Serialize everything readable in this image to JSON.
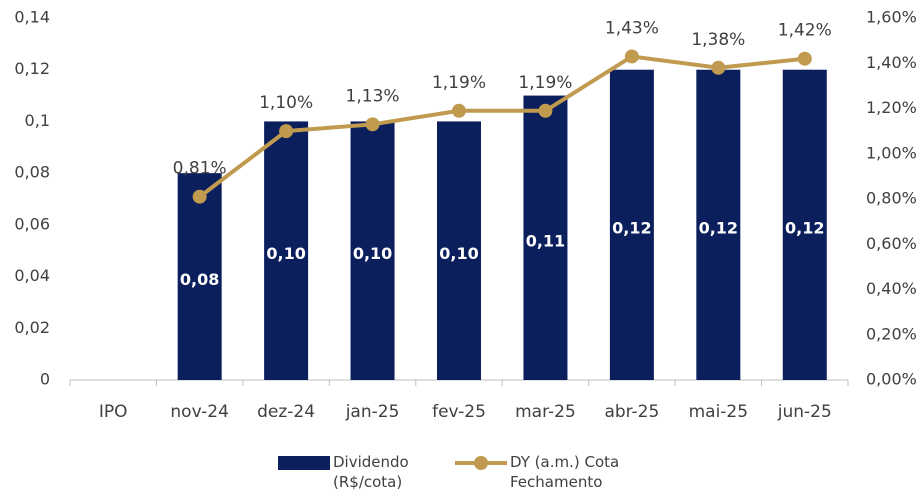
{
  "chart_data": {
    "type": "bar_line",
    "categories": [
      "IPO",
      "nov-24",
      "dez-24",
      "jan-25",
      "fev-25",
      "mar-25",
      "abr-25",
      "mai-25",
      "jun-25"
    ],
    "series": [
      {
        "name": "Dividendo (R$/cota)",
        "type": "bar",
        "color": "#0b1f5c",
        "values": [
          null,
          0.08,
          0.1,
          0.1,
          0.1,
          0.11,
          0.12,
          0.12,
          0.12
        ],
        "value_labels": [
          null,
          "0,08",
          "0,10",
          "0,10",
          "0,10",
          "0,11",
          "0,12",
          "0,12",
          "0,12"
        ]
      },
      {
        "name": "DY (a.m.) Cota Fechamento",
        "type": "line",
        "axis": "y2",
        "color": "#c09a4f",
        "values": [
          null,
          0.81,
          1.1,
          1.13,
          1.19,
          1.19,
          1.43,
          1.38,
          1.42
        ],
        "value_labels": [
          null,
          "0,81%",
          "1,10%",
          "1,13%",
          "1,19%",
          "1,19%",
          "1,43%",
          "1,38%",
          "1,42%"
        ]
      }
    ],
    "ylim": [
      0,
      0.14
    ],
    "yticks": [
      0,
      {
        "value": 0.02,
        "label": "0,02"
      },
      {
        "value": 0.04,
        "label": "0,04"
      },
      {
        "value": 0.06,
        "label": "0,06"
      },
      {
        "value": 0.08,
        "label": "0,08"
      },
      {
        "value": 0.1,
        "label": "0,1"
      },
      {
        "value": 0.12,
        "label": "0,12"
      },
      {
        "value": 0.14,
        "label": "0,14"
      }
    ],
    "y2lim": [
      0,
      1.6
    ],
    "y2ticks": [
      {
        "value": 0,
        "label": "0,00%"
      },
      {
        "value": 0.2,
        "label": "0,20%"
      },
      {
        "value": 0.4,
        "label": "0,40%"
      },
      {
        "value": 0.6,
        "label": "0,60%"
      },
      {
        "value": 0.8,
        "label": "0,80%"
      },
      {
        "value": 1.0,
        "label": "1,00%"
      },
      {
        "value": 1.2,
        "label": "1,20%"
      },
      {
        "value": 1.4,
        "label": "1,40%"
      },
      {
        "value": 1.6,
        "label": "1,60%"
      }
    ],
    "legend": "bottom"
  }
}
